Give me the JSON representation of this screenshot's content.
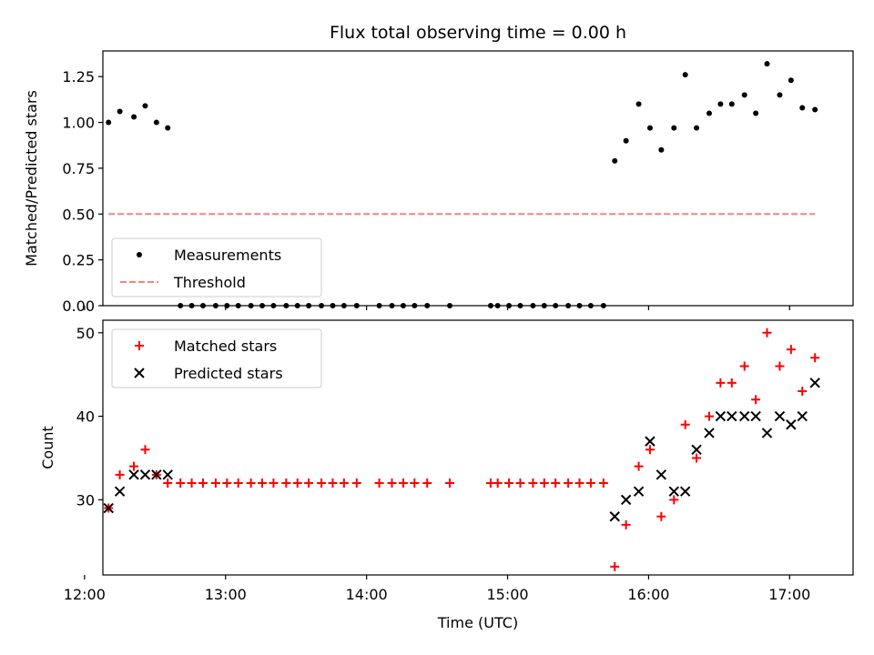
{
  "chart_data": [
    {
      "type": "scatter",
      "title": "Flux total observing time = 0.00 h",
      "ylabel": "Matched/Predicted stars",
      "xlabel": "",
      "xlim": [
        12.13,
        17.45
      ],
      "ylim": [
        0,
        1.39
      ],
      "yticks": [
        "0.00",
        "0.25",
        "0.50",
        "0.75",
        "1.00",
        "1.25"
      ],
      "xticks": [
        "12:00",
        "13:00",
        "14:00",
        "15:00",
        "16:00",
        "17:00"
      ],
      "xtick_values": [
        12,
        13,
        14,
        15,
        16,
        17
      ],
      "ytick_values": [
        0,
        0.25,
        0.5,
        0.75,
        1.0,
        1.25
      ],
      "legend_position": "lower-left",
      "series": [
        {
          "name": "Measurements",
          "marker": "dot",
          "color": "#000000",
          "x": [
            12.17,
            12.25,
            12.35,
            12.43,
            12.51,
            12.59,
            12.68,
            12.76,
            12.84,
            12.93,
            13.01,
            13.09,
            13.18,
            13.26,
            13.34,
            13.43,
            13.51,
            13.59,
            13.68,
            13.76,
            13.84,
            13.93,
            14.09,
            14.18,
            14.26,
            14.34,
            14.43,
            14.59,
            14.88,
            14.93,
            15.01,
            15.09,
            15.18,
            15.26,
            15.34,
            15.43,
            15.51,
            15.59,
            15.68,
            15.76,
            15.84,
            15.93,
            16.01,
            16.09,
            16.18,
            16.26,
            16.34,
            16.43,
            16.51,
            16.59,
            16.68,
            16.76,
            16.84,
            16.93,
            17.01,
            17.09,
            17.18
          ],
          "y": [
            1.0,
            1.06,
            1.03,
            1.09,
            1.0,
            0.97,
            0,
            0,
            0,
            0,
            0,
            0,
            0,
            0,
            0,
            0,
            0,
            0,
            0,
            0,
            0,
            0,
            0,
            0,
            0,
            0,
            0,
            0,
            0,
            0,
            0,
            0,
            0,
            0,
            0,
            0,
            0,
            0,
            0,
            0.79,
            0.9,
            1.1,
            0.97,
            0.85,
            0.97,
            1.26,
            0.97,
            1.05,
            1.1,
            1.1,
            1.15,
            1.05,
            1.32,
            1.15,
            1.23,
            1.08,
            1.07
          ]
        },
        {
          "name": "Threshold",
          "style": "dashed-line",
          "color": "#ff7f7f",
          "x": [
            12.17,
            17.18
          ],
          "y": [
            0.5,
            0.5
          ]
        }
      ]
    },
    {
      "type": "scatter",
      "title": "",
      "xlabel": "Time (UTC)",
      "ylabel": "Count",
      "xlim": [
        12.13,
        17.45
      ],
      "ylim": [
        21,
        51.5
      ],
      "yticks": [
        "30",
        "40",
        "50"
      ],
      "ytick_values": [
        30,
        40,
        50
      ],
      "xticks": [
        "12:00",
        "13:00",
        "14:00",
        "15:00",
        "16:00",
        "17:00"
      ],
      "xtick_values": [
        12,
        13,
        14,
        15,
        16,
        17
      ],
      "legend_position": "top-left",
      "series": [
        {
          "name": "Matched stars",
          "marker": "plus",
          "color": "#ff0000",
          "x": [
            12.17,
            12.25,
            12.35,
            12.43,
            12.51,
            12.59,
            12.68,
            12.76,
            12.84,
            12.93,
            13.01,
            13.09,
            13.18,
            13.26,
            13.34,
            13.43,
            13.51,
            13.59,
            13.68,
            13.76,
            13.84,
            13.93,
            14.09,
            14.18,
            14.26,
            14.34,
            14.43,
            14.59,
            14.88,
            14.93,
            15.01,
            15.09,
            15.18,
            15.26,
            15.34,
            15.43,
            15.51,
            15.59,
            15.68,
            15.76,
            15.84,
            15.93,
            16.01,
            16.09,
            16.18,
            16.26,
            16.34,
            16.43,
            16.51,
            16.59,
            16.68,
            16.76,
            16.84,
            16.93,
            17.01,
            17.09,
            17.18
          ],
          "y": [
            29,
            33,
            34,
            36,
            33,
            32,
            32,
            32,
            32,
            32,
            32,
            32,
            32,
            32,
            32,
            32,
            32,
            32,
            32,
            32,
            32,
            32,
            32,
            32,
            32,
            32,
            32,
            32,
            32,
            32,
            32,
            32,
            32,
            32,
            32,
            32,
            32,
            32,
            32,
            22,
            27,
            34,
            36,
            28,
            30,
            39,
            35,
            40,
            44,
            44,
            46,
            42,
            50,
            46,
            48,
            43,
            47
          ]
        },
        {
          "name": "Predicted stars",
          "marker": "x",
          "color": "#000000",
          "x": [
            12.17,
            12.25,
            12.35,
            12.43,
            12.51,
            12.59,
            15.76,
            15.84,
            15.93,
            16.01,
            16.09,
            16.18,
            16.26,
            16.34,
            16.43,
            16.51,
            16.59,
            16.68,
            16.76,
            16.84,
            16.93,
            17.01,
            17.09,
            17.18
          ],
          "y": [
            29,
            31,
            33,
            33,
            33,
            33,
            28,
            30,
            31,
            37,
            33,
            31,
            31,
            36,
            38,
            40,
            40,
            40,
            40,
            38,
            40,
            39,
            40,
            44
          ]
        }
      ]
    }
  ]
}
